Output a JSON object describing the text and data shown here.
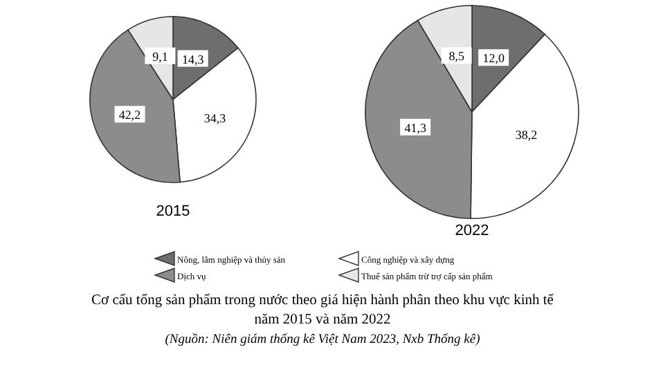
{
  "chart_data": {
    "type": "pie",
    "title": "Cơ cấu tổng sản phẩm trong nước theo giá hiện hành phân theo khu vực kinh tế năm 2015 và năm 2022",
    "categories": [
      "Nông, lâm nghiệp và thủy sản",
      "Công nghiệp và xây dựng",
      "Dịch vụ",
      "Thuế sản phẩm trừ trợ cấp sản phẩm"
    ],
    "colors": [
      "#6e6e6e",
      "#ffffff",
      "#8c8c8c",
      "#e6e6e6"
    ],
    "legend": "bottom",
    "series": [
      {
        "name": "2015",
        "values": [
          14.3,
          34.3,
          42.2,
          9.1
        ],
        "value_labels": [
          "14,3",
          "34,3",
          "42,2",
          "9,1"
        ]
      },
      {
        "name": "2022",
        "values": [
          12.0,
          38.2,
          41.3,
          8.5
        ],
        "value_labels": [
          "12,0",
          "38,2",
          "41,3",
          "8,5"
        ]
      }
    ],
    "annotations": [
      "(Nguồn: Niên giám thống kê Việt Nam 2023, Nxb Thống kê)"
    ]
  }
}
